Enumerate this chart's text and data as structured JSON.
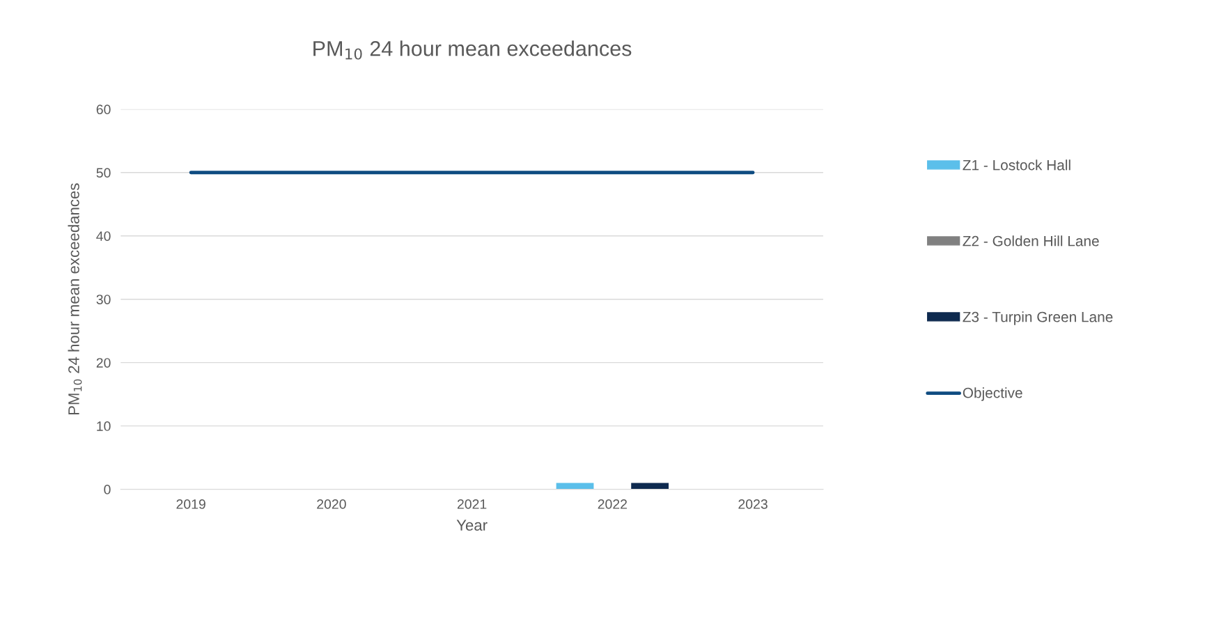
{
  "chart_data": {
    "type": "bar",
    "title": "PM$_{10}$ 24 hour mean exceedances",
    "xlabel": "Year",
    "ylabel": "PM$_{10}$ 24 hour mean exceedances",
    "categories": [
      "2019",
      "2020",
      "2021",
      "2022",
      "2023"
    ],
    "series": [
      {
        "name": "Z1 - Lostock Hall",
        "color": "#5bbfea",
        "values": [
          0,
          0,
          0,
          1,
          0
        ]
      },
      {
        "name": "Z2 - Golden Hill Lane",
        "color": "#808080",
        "values": [
          0,
          0,
          0,
          0,
          0
        ]
      },
      {
        "name": "Z3 - Turpin Green Lane",
        "color": "#0e2a4f",
        "values": [
          0,
          0,
          0,
          1,
          0
        ]
      },
      {
        "name": "Objective",
        "type": "line",
        "color": "#0f4c81",
        "values": [
          50,
          50,
          50,
          50,
          50
        ]
      }
    ],
    "ylim": [
      0,
      60
    ],
    "yticks": [
      0,
      10,
      20,
      30,
      40,
      50,
      60
    ],
    "grid": "y",
    "legend": "right"
  }
}
